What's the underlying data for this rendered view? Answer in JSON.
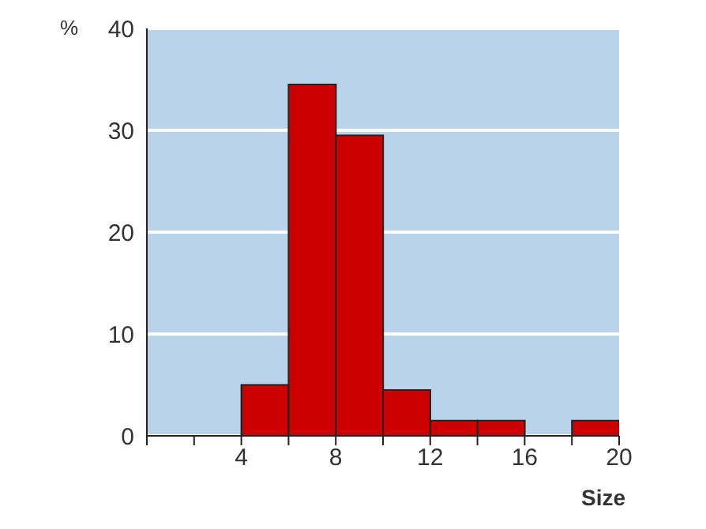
{
  "chart_data": {
    "type": "histogram",
    "xlabel": "Size",
    "ylabel": "%",
    "bins": [
      0,
      2,
      4,
      6,
      8,
      10,
      12,
      14,
      16,
      18,
      20
    ],
    "values": [
      0,
      0,
      5,
      34.5,
      29.5,
      4.5,
      1.5,
      1.5,
      0,
      1.5
    ],
    "color": "#cc0000",
    "xlim": [
      0,
      20
    ],
    "xticks": [
      {
        "value": 0,
        "label": null
      },
      {
        "value": 2,
        "label": null
      },
      4,
      {
        "value": 6,
        "label": null
      },
      8,
      {
        "value": 10,
        "label": null
      },
      12,
      {
        "value": 14,
        "label": null
      },
      16,
      {
        "value": 18,
        "label": null
      },
      20
    ],
    "ylim": [
      0,
      40
    ],
    "yticks": [
      0,
      10,
      20,
      30,
      40
    ],
    "grid": "y"
  }
}
